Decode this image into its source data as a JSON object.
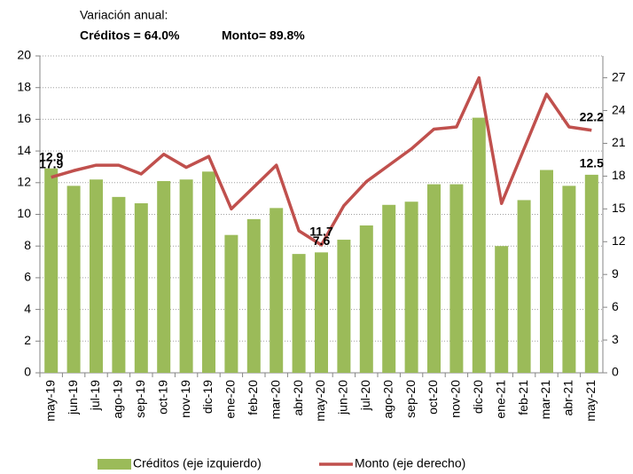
{
  "chart_data": {
    "type": "bar_line",
    "header": {
      "title": "Variación anual:",
      "note1": "Créditos = 64.0%",
      "note2": "Monto= 89.8%"
    },
    "categories": [
      "may-19",
      "jun-19",
      "jul-19",
      "ago-19",
      "sep-19",
      "oct-19",
      "nov-19",
      "dic-19",
      "ene-20",
      "feb-20",
      "mar-20",
      "abr-20",
      "may-20",
      "jun-20",
      "jul-20",
      "ago-20",
      "sep-20",
      "oct-20",
      "nov-20",
      "dic-20",
      "ene-21",
      "feb-21",
      "mar-21",
      "abr-21",
      "may-21"
    ],
    "series": [
      {
        "name": "Créditos (eje izquierdo)",
        "type": "bar",
        "color": "#9bbb59",
        "values": [
          12.9,
          11.8,
          12.2,
          11.1,
          10.7,
          12.1,
          12.2,
          12.7,
          8.7,
          9.7,
          10.4,
          7.5,
          7.6,
          8.4,
          9.3,
          10.6,
          10.8,
          11.9,
          11.9,
          16.1,
          8.0,
          10.9,
          12.8,
          11.8,
          12.5
        ],
        "value_labels": [
          "12.9",
          null,
          null,
          null,
          null,
          null,
          null,
          null,
          null,
          null,
          null,
          null,
          "7.6",
          null,
          null,
          null,
          null,
          null,
          null,
          null,
          null,
          null,
          null,
          null,
          "12.5"
        ],
        "label_color": "#000000"
      },
      {
        "name": "Monto (eje derecho)",
        "type": "line",
        "axis": "y2",
        "color": "#c0504d",
        "values": [
          17.9,
          18.5,
          19.0,
          19.0,
          18.2,
          20.0,
          18.8,
          19.8,
          15.0,
          17.0,
          19.0,
          13.0,
          11.7,
          15.3,
          17.5,
          19.0,
          20.5,
          22.3,
          22.5,
          27.0,
          15.5,
          20.5,
          25.5,
          22.5,
          22.2
        ],
        "value_labels": [
          "17.9",
          null,
          null,
          null,
          null,
          null,
          null,
          null,
          null,
          null,
          null,
          null,
          "11.7",
          null,
          null,
          null,
          null,
          null,
          null,
          null,
          null,
          null,
          null,
          null,
          "22.2"
        ],
        "label_color": "#c00000"
      }
    ],
    "ylim": [
      0,
      20
    ],
    "yticks": [
      0,
      2,
      4,
      6,
      8,
      10,
      12,
      14,
      16,
      18,
      20
    ],
    "y2lim": [
      0,
      29
    ],
    "y2ticks": [
      0,
      3,
      6,
      9,
      12,
      15,
      18,
      21,
      24,
      27
    ],
    "grid": true,
    "legend": "bottom"
  }
}
